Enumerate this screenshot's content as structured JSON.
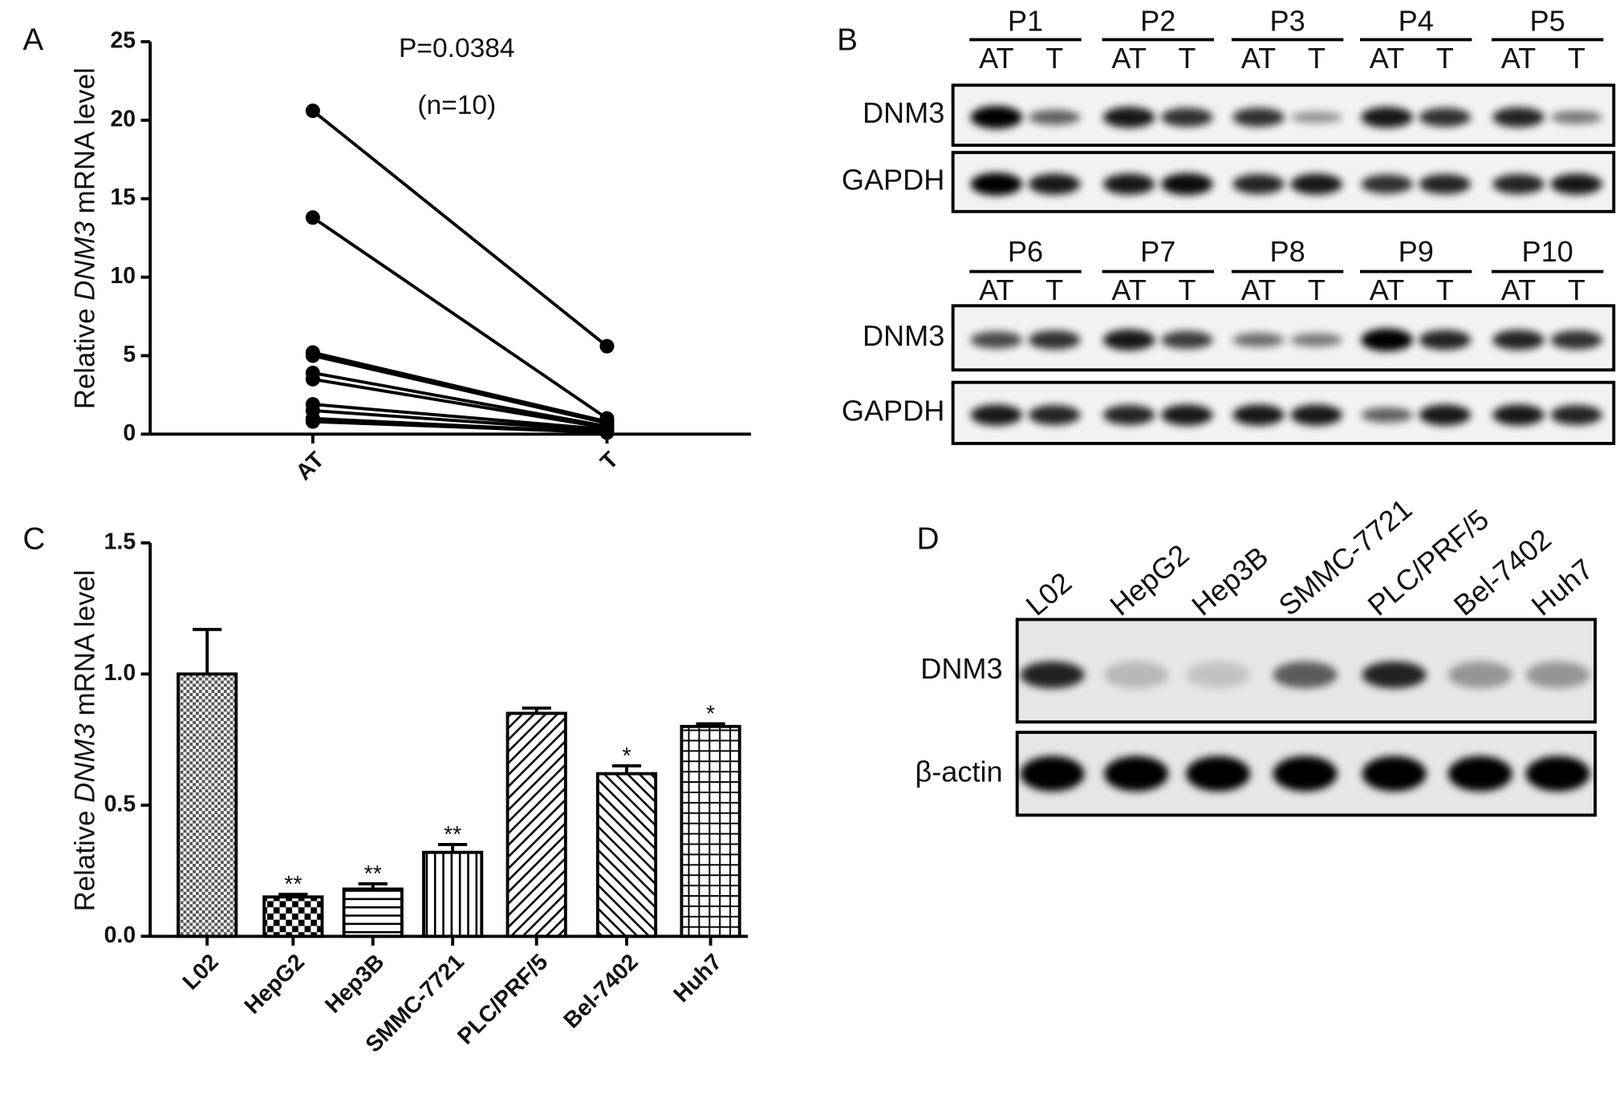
{
  "panel_labels": [
    "A",
    "B",
    "C",
    "D"
  ],
  "chart_data": [
    {
      "type": "line",
      "ylabel": {
        "prefix": "Relative",
        "gene": "DNM3",
        "suffix": "mRNA level"
      },
      "annotations": [
        "P=0.0384",
        "(n=10)"
      ],
      "categories": [
        "AT",
        "T"
      ],
      "series": [
        {
          "values": [
            20.6,
            5.6
          ]
        },
        {
          "values": [
            13.8,
            1.0
          ]
        },
        {
          "values": [
            5.2,
            0.8
          ]
        },
        {
          "values": [
            5.0,
            0.7
          ]
        },
        {
          "values": [
            3.9,
            0.5
          ]
        },
        {
          "values": [
            3.5,
            0.4
          ]
        },
        {
          "values": [
            1.9,
            0.3
          ]
        },
        {
          "values": [
            1.5,
            0.2
          ]
        },
        {
          "values": [
            1.0,
            0.1
          ]
        },
        {
          "values": [
            0.8,
            0.1
          ]
        }
      ],
      "color": "#000000",
      "ylim": [
        0,
        25
      ],
      "yticks": [
        0,
        5,
        10,
        15,
        20,
        25
      ]
    },
    {
      "type": "bar",
      "ylabel": {
        "prefix": "Relative",
        "gene": "DNM3",
        "suffix": "mRNA level"
      },
      "categories": [
        "L02",
        "HepG2",
        "Hep3B",
        "SMMC-7721",
        "PLC/PRF/5",
        "Bel-7402",
        "Huh7"
      ],
      "values": [
        1.0,
        0.15,
        0.18,
        0.32,
        0.85,
        0.62,
        0.8
      ],
      "errors": [
        0.17,
        0.01,
        0.02,
        0.03,
        0.02,
        0.03,
        0.01
      ],
      "significance": [
        null,
        "**",
        "**",
        "**",
        null,
        "*",
        "*"
      ],
      "color": "#000000",
      "ylim": [
        0,
        1.5
      ],
      "yticks": [
        {
          "value": 0,
          "label": "0.0"
        },
        0.5,
        {
          "value": 1,
          "label": "1.0"
        },
        1.5
      ]
    }
  ],
  "blot_b": {
    "blocks": [
      {
        "patients": [
          {
            "name": "P1",
            "lanes": [
              "AT",
              "T"
            ]
          },
          {
            "name": "P2",
            "lanes": [
              "AT",
              "T"
            ]
          },
          {
            "name": "P3",
            "lanes": [
              "AT",
              "T"
            ]
          },
          {
            "name": "P4",
            "lanes": [
              "AT",
              "T"
            ]
          },
          {
            "name": "P5",
            "lanes": [
              "AT",
              "T"
            ]
          }
        ],
        "rows": [
          "DNM3",
          "GAPDH"
        ]
      },
      {
        "patients": [
          {
            "name": "P6",
            "lanes": [
              "AT",
              "T"
            ]
          },
          {
            "name": "P7",
            "lanes": [
              "AT",
              "T"
            ]
          },
          {
            "name": "P8",
            "lanes": [
              "AT",
              "T"
            ]
          },
          {
            "name": "P9",
            "lanes": [
              "AT",
              "T"
            ]
          },
          {
            "name": "P10",
            "lanes": [
              "AT",
              "T"
            ]
          }
        ],
        "rows": [
          "DNM3",
          "GAPDH"
        ]
      }
    ]
  },
  "blot_d": {
    "lanes": [
      "L02",
      "HepG2",
      "Hep3B",
      "SMMC-7721",
      "PLC/PRF/5",
      "Bel-7402",
      "Huh7"
    ],
    "rows": [
      "DNM3",
      "β-actin"
    ]
  }
}
